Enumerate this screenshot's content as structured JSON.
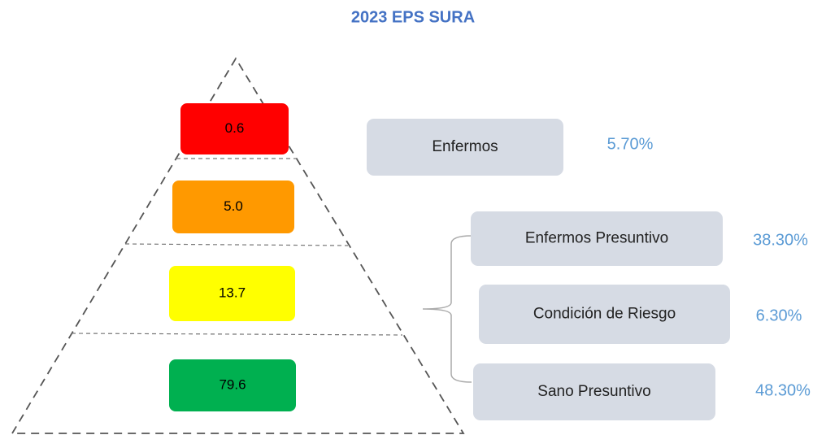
{
  "title": "2023 EPS SURA",
  "pyramid": {
    "levels": [
      {
        "label": "0.6",
        "color": "#ff0000"
      },
      {
        "label": "5.0",
        "color": "#ff9900"
      },
      {
        "label": "13.7",
        "color": "#ffff00"
      },
      {
        "label": "79.6",
        "color": "#00b050"
      }
    ]
  },
  "groups": [
    {
      "name": "Enfermos",
      "percent": "5.70%"
    },
    {
      "name": "Enfermos Presuntivo",
      "percent": "38.30%"
    },
    {
      "name": "Condición de Riesgo",
      "percent": "6.30%"
    },
    {
      "name": "Sano Presuntivo",
      "percent": "48.30%"
    }
  ]
}
